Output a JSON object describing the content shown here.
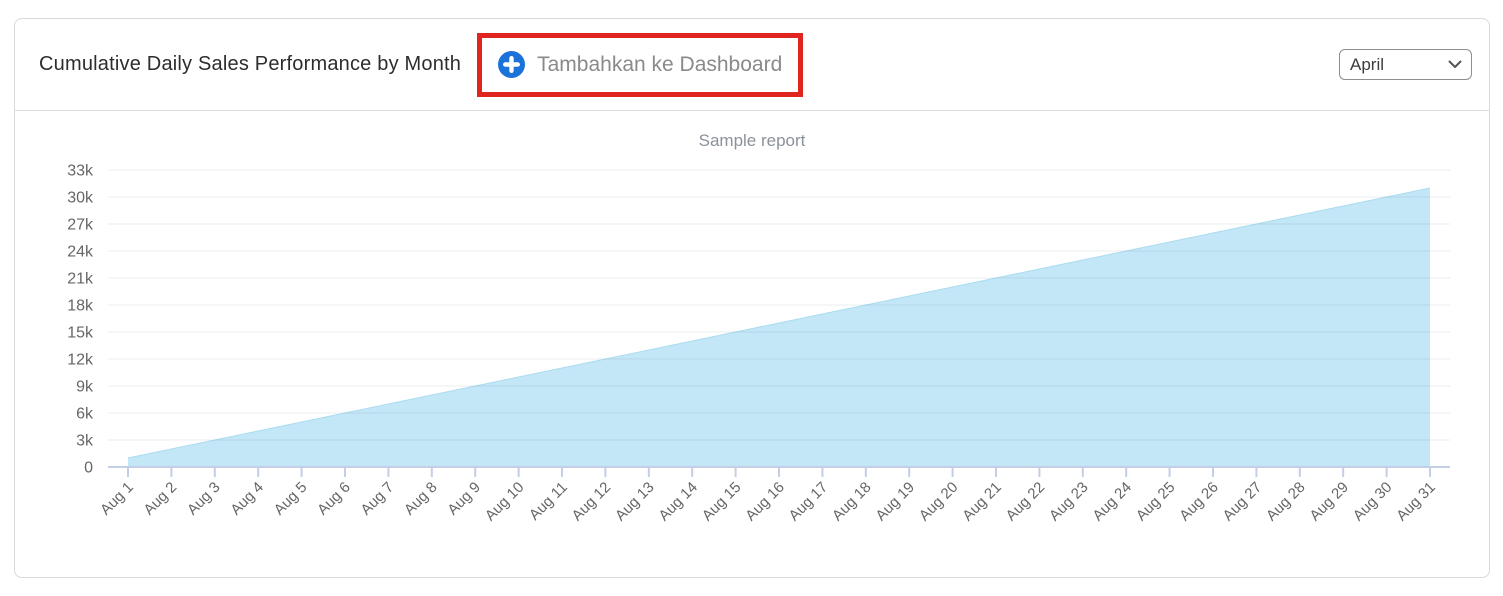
{
  "header": {
    "title": "Cumulative Daily Sales Performance by Month",
    "add_to_dashboard": {
      "label": "Tambahkan ke Dashboard",
      "icon": "plus-circle-icon",
      "icon_color": "#1b72d9",
      "highlight_color": "#e02420"
    },
    "month_select": {
      "value": "April",
      "icon": "chevron-down-icon"
    }
  },
  "chart_data": {
    "type": "area",
    "title": "Sample report",
    "xlabel": "",
    "ylabel": "",
    "legend": "none",
    "grid": "horizontal",
    "ylim": [
      0,
      33000
    ],
    "ytick_step": 3000,
    "ytick_labels": [
      "0",
      "3k",
      "6k",
      "9k",
      "12k",
      "15k",
      "18k",
      "21k",
      "24k",
      "27k",
      "30k",
      "33k"
    ],
    "categories": [
      "Aug 1",
      "Aug 2",
      "Aug 3",
      "Aug 4",
      "Aug 5",
      "Aug 6",
      "Aug 7",
      "Aug 8",
      "Aug 9",
      "Aug 10",
      "Aug 11",
      "Aug 12",
      "Aug 13",
      "Aug 14",
      "Aug 15",
      "Aug 16",
      "Aug 17",
      "Aug 18",
      "Aug 19",
      "Aug 20",
      "Aug 21",
      "Aug 22",
      "Aug 23",
      "Aug 24",
      "Aug 25",
      "Aug 26",
      "Aug 27",
      "Aug 28",
      "Aug 29",
      "Aug 30",
      "Aug 31"
    ],
    "values": [
      1000,
      2000,
      3000,
      4000,
      5000,
      6000,
      7000,
      8000,
      9000,
      10000,
      11000,
      12000,
      13000,
      14000,
      15000,
      16000,
      17000,
      18000,
      19000,
      20000,
      21000,
      22000,
      23000,
      24000,
      25000,
      26000,
      27000,
      28000,
      29000,
      30000,
      31000
    ],
    "colors": {
      "area_fill": "#c3e7f7",
      "area_edge": "#a9dcf1",
      "axis_line": "#c3cfe4",
      "grid_line": "rgba(60,70,85,0.10)",
      "tick_text": "#666666",
      "title_text": "#8b919b"
    }
  }
}
